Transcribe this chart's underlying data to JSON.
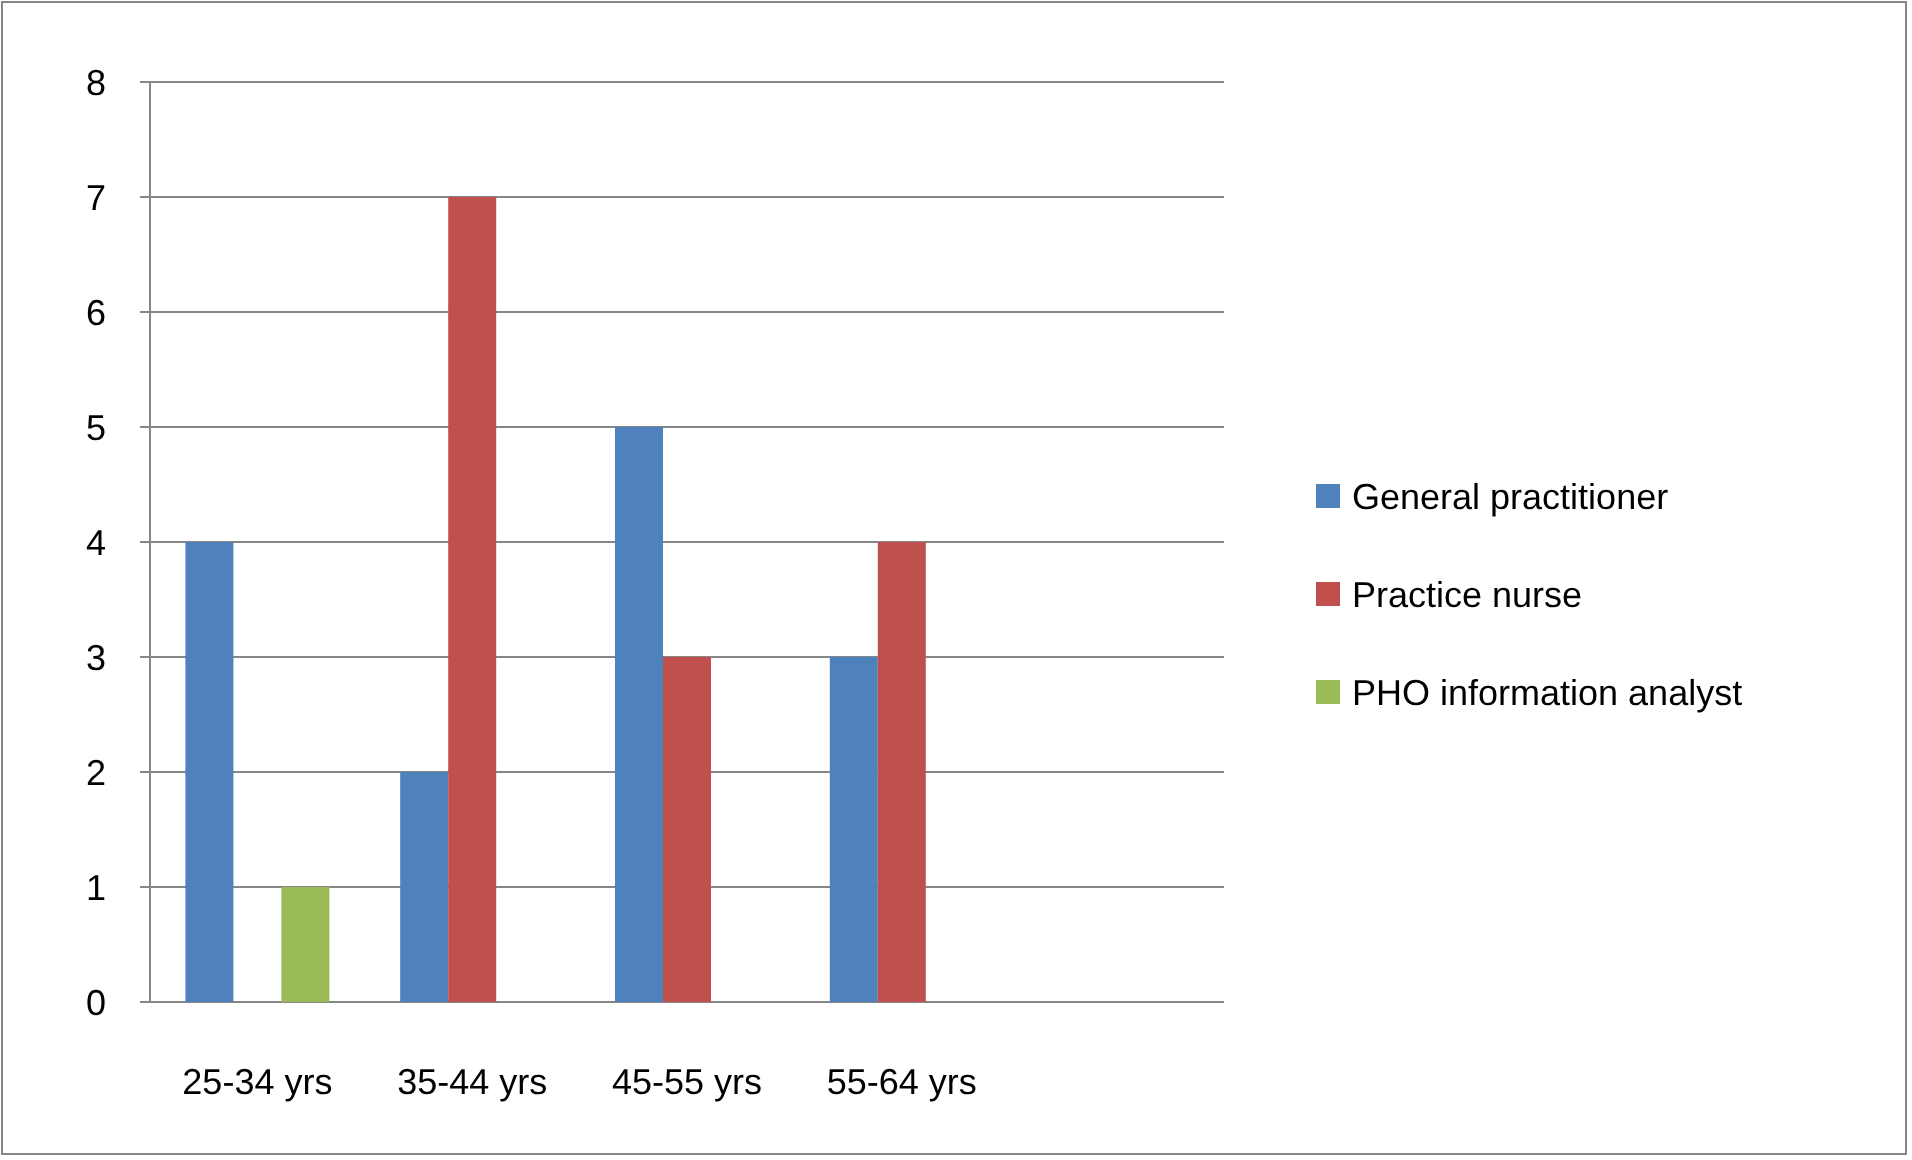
{
  "chart_data": {
    "type": "bar",
    "categories": [
      "25-34 yrs",
      "35-44 yrs",
      "45-55 yrs",
      "55-64 yrs",
      null
    ],
    "series": [
      {
        "name": "General practitioner",
        "color": "#4f81bd",
        "values": [
          4,
          2,
          5,
          3,
          null
        ]
      },
      {
        "name": "Practice nurse",
        "color": "#c0504d",
        "values": [
          null,
          7,
          3,
          4,
          null
        ]
      },
      {
        "name": "PHO information analyst",
        "color": "#9bbb59",
        "values": [
          1,
          null,
          null,
          null,
          null
        ]
      }
    ],
    "ylim": [
      0,
      8
    ],
    "yticks": [
      0,
      1,
      2,
      3,
      4,
      5,
      6,
      7,
      8
    ],
    "grid": "y",
    "legend": "right"
  }
}
